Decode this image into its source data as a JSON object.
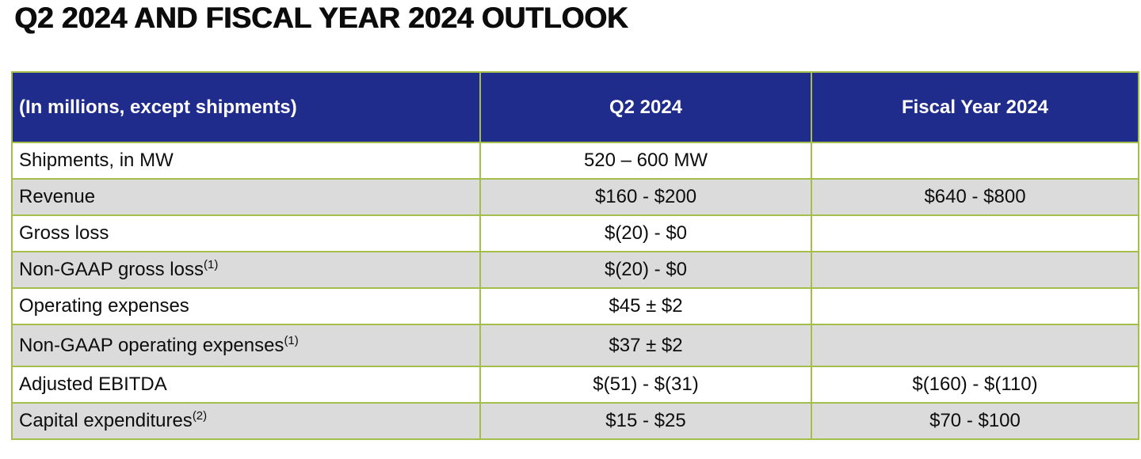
{
  "page": {
    "title": "Q2 2024 AND FISCAL YEAR 2024 OUTLOOK"
  },
  "colors": {
    "header_bg": "#1f2c8b",
    "header_text": "#ffffff",
    "border_green": "#a3be4b",
    "row_alt_gray": "#dbdbdb",
    "body_text": "#0d0d0d"
  },
  "table": {
    "columns": {
      "label": "(In millions, except shipments)",
      "q2": "Q2 2024",
      "fy": "Fiscal Year 2024"
    },
    "rows": [
      {
        "label": "Shipments, in MW",
        "sup": "",
        "q2": "520 – 600 MW",
        "fy": ""
      },
      {
        "label": "Revenue",
        "sup": "",
        "q2": "$160 - $200",
        "fy": "$640 - $800"
      },
      {
        "label": "Gross loss",
        "sup": "",
        "q2": "$(20) - $0",
        "fy": ""
      },
      {
        "label": "Non-GAAP gross loss",
        "sup": "(1)",
        "q2": "$(20) - $0",
        "fy": ""
      },
      {
        "label": "Operating expenses",
        "sup": "",
        "q2": "$45 ± $2",
        "fy": ""
      },
      {
        "label": "Non-GAAP operating expenses",
        "sup": "(1)",
        "q2": "$37 ± $2",
        "fy": ""
      },
      {
        "label": "Adjusted EBITDA",
        "sup": "",
        "q2": "$(51) - $(31)",
        "fy": "$(160) - $(110)"
      },
      {
        "label": "Capital expenditures",
        "sup": "(2)",
        "q2": "$15 - $25",
        "fy": "$70 - $100"
      }
    ]
  }
}
